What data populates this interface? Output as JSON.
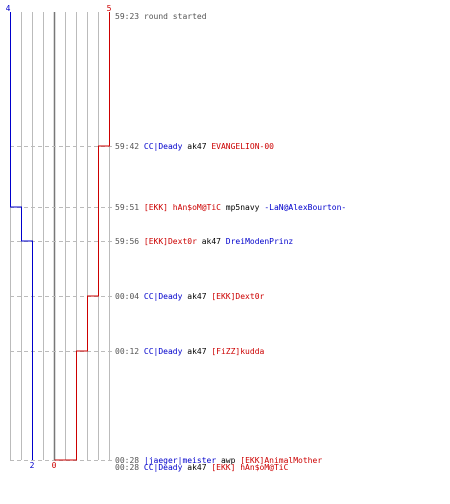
{
  "colors": {
    "team_a": "#0000cc",
    "team_b": "#cc0000",
    "time": "#555555",
    "neutral": "#000000",
    "grid": "#bbbbbb",
    "dash": "#bbbbbb",
    "center": "#777777"
  },
  "chart_data": {
    "type": "line",
    "x_start_tick": 4,
    "x_end_tick_a": 2,
    "x_end_tick_b": 0,
    "x_start_tick_b": 5,
    "series": [
      {
        "team": "a",
        "points": [
          {
            "time": "59:23",
            "value": 0
          },
          {
            "time": "59:51",
            "value": 1
          },
          {
            "time": "59:56",
            "value": 2
          },
          {
            "time": "00:28",
            "value": 2
          }
        ]
      },
      {
        "team": "b",
        "points": [
          {
            "time": "59:23",
            "value": 0
          },
          {
            "time": "59:42",
            "value": 1
          },
          {
            "time": "00:04",
            "value": 2
          },
          {
            "time": "00:12",
            "value": 3
          },
          {
            "time": "00:28",
            "value": 4
          },
          {
            "time": "00:28",
            "value": 5
          }
        ]
      }
    ],
    "events": [
      {
        "time": "59:23",
        "parts": [
          {
            "text": "round started",
            "team": "time"
          }
        ]
      },
      {
        "time": "59:42",
        "parts": [
          {
            "text": "CC|Deady",
            "team": "a"
          },
          {
            "text": " ak47 ",
            "team": "neutral"
          },
          {
            "text": "EVANGELION-00",
            "team": "b"
          }
        ]
      },
      {
        "time": "59:51",
        "parts": [
          {
            "text": "[EKK] hAn$oM@TiC",
            "team": "b"
          },
          {
            "text": " mp5navy ",
            "team": "neutral"
          },
          {
            "text": "-LaN@AlexBourton-",
            "team": "a"
          }
        ]
      },
      {
        "time": "59:56",
        "parts": [
          {
            "text": "[EKK]Dext0r",
            "team": "b"
          },
          {
            "text": " ak47 ",
            "team": "neutral"
          },
          {
            "text": "DreiModenPrinz",
            "team": "a"
          }
        ]
      },
      {
        "time": "00:04",
        "parts": [
          {
            "text": "CC|Deady",
            "team": "a"
          },
          {
            "text": " ak47 ",
            "team": "neutral"
          },
          {
            "text": "[EKK]Dext0r",
            "team": "b"
          }
        ]
      },
      {
        "time": "00:12",
        "parts": [
          {
            "text": "CC|Deady",
            "team": "a"
          },
          {
            "text": " ak47 ",
            "team": "neutral"
          },
          {
            "text": "[FiZZ]kudda",
            "team": "b"
          }
        ]
      },
      {
        "time": "00:28",
        "parts": [
          {
            "text": "|jaeger|meister",
            "team": "a"
          },
          {
            "text": " awp ",
            "team": "neutral"
          },
          {
            "text": "[EKK]AnimalMother",
            "team": "b"
          }
        ]
      },
      {
        "time": "00:28",
        "parts": [
          {
            "text": "CC|Deady",
            "team": "a"
          },
          {
            "text": " ak47 ",
            "team": "neutral"
          },
          {
            "text": "[EKK] hAn$oM@TiC",
            "team": "b"
          }
        ]
      }
    ]
  }
}
